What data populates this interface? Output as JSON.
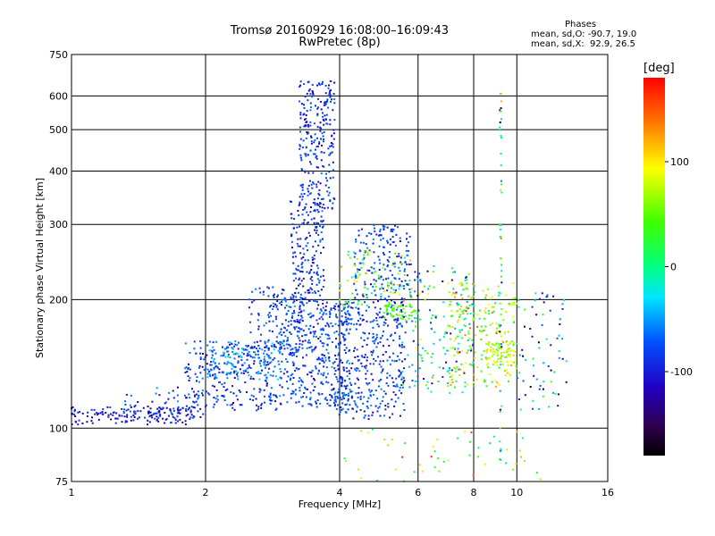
{
  "header": {
    "title_line1": "Tromsø 20160929 16:08:00–16:09:43",
    "title_line2": "RwPretec (8p)"
  },
  "stats": {
    "heading": "Phases",
    "line_o": "mean, sd,O: -90.7, 19.0",
    "line_x": "mean, sd,X:  92.9, 26.5"
  },
  "colorbar": {
    "label": "[deg]",
    "ticks": [
      {
        "value": 100,
        "label": "100"
      },
      {
        "value": 0,
        "label": "0"
      },
      {
        "value": -100,
        "label": "-100"
      }
    ],
    "range": [
      -180,
      180
    ]
  },
  "chart_data": {
    "type": "scatter",
    "xlabel": "Frequency [MHz]",
    "ylabel": "Stationary phase Virtual Height [km]",
    "xscale": "log",
    "yscale": "log",
    "xlim": [
      1,
      16
    ],
    "ylim": [
      75,
      750
    ],
    "xticks": [
      {
        "value": 1,
        "label": "1"
      },
      {
        "value": 2,
        "label": "2"
      },
      {
        "value": 4,
        "label": "4"
      },
      {
        "value": 6,
        "label": "6"
      },
      {
        "value": 8,
        "label": "8"
      },
      {
        "value": 10,
        "label": "10"
      },
      {
        "value": 16,
        "label": "16"
      }
    ],
    "yticks": [
      {
        "value": 75,
        "label": "75"
      },
      {
        "value": 100,
        "label": "100"
      },
      {
        "value": 200,
        "label": "200"
      },
      {
        "value": 300,
        "label": "300"
      },
      {
        "value": 400,
        "label": "400"
      },
      {
        "value": 500,
        "label": "500"
      },
      {
        "value": 600,
        "label": "600"
      },
      {
        "value": 750,
        "label": "750"
      }
    ],
    "grid": true,
    "series": [
      {
        "clusters": [
          {
            "f0": 1.0,
            "f1": 1.9,
            "h0": 102,
            "h1": 112,
            "n": 150,
            "ph": -115,
            "ps": 12
          },
          {
            "f0": 1.3,
            "f1": 2.0,
            "h0": 105,
            "h1": 125,
            "n": 60,
            "ph": -100,
            "ps": 15
          },
          {
            "f0": 1.8,
            "f1": 3.0,
            "h0": 110,
            "h1": 160,
            "n": 280,
            "ph": -105,
            "ps": 15
          },
          {
            "f0": 2.0,
            "f1": 3.0,
            "h0": 130,
            "h1": 160,
            "n": 120,
            "ph": -65,
            "ps": 15
          },
          {
            "f0": 2.5,
            "f1": 3.3,
            "h0": 150,
            "h1": 215,
            "n": 120,
            "ph": -100,
            "ps": 15
          },
          {
            "f0": 3.0,
            "f1": 4.2,
            "h0": 112,
            "h1": 200,
            "n": 380,
            "ph": -100,
            "ps": 14
          },
          {
            "f0": 3.1,
            "f1": 3.7,
            "h0": 200,
            "h1": 340,
            "n": 170,
            "ph": -105,
            "ps": 13
          },
          {
            "f0": 3.25,
            "f1": 3.9,
            "h0": 320,
            "h1": 650,
            "n": 260,
            "ph": -105,
            "ps": 12
          },
          {
            "f0": 3.9,
            "f1": 5.6,
            "h0": 105,
            "h1": 200,
            "n": 380,
            "ph": -100,
            "ps": 14
          },
          {
            "f0": 4.3,
            "f1": 5.8,
            "h0": 200,
            "h1": 300,
            "n": 170,
            "ph": -100,
            "ps": 15
          },
          {
            "f0": 4.0,
            "f1": 5.8,
            "h0": 190,
            "h1": 260,
            "n": 90,
            "ph": 50,
            "ps": 45
          },
          {
            "f0": 5.0,
            "f1": 6.0,
            "h0": 180,
            "h1": 195,
            "n": 50,
            "ph": 45,
            "ps": 15
          },
          {
            "f0": 5.5,
            "f1": 8.0,
            "h0": 120,
            "h1": 240,
            "n": 170,
            "ph": -40,
            "ps": 70
          },
          {
            "f0": 7.0,
            "f1": 10.0,
            "h0": 125,
            "h1": 220,
            "n": 220,
            "ph": 70,
            "ps": 40
          },
          {
            "f0": 8.5,
            "f1": 10.0,
            "h0": 140,
            "h1": 160,
            "n": 60,
            "ph": 85,
            "ps": 15
          },
          {
            "f0": 10.0,
            "f1": 13.0,
            "h0": 110,
            "h1": 210,
            "n": 70,
            "ph": -80,
            "ps": 60
          },
          {
            "f0": 9.15,
            "f1": 9.25,
            "h0": 78,
            "h1": 620,
            "n": 50,
            "ph": 0,
            "ps": 80
          },
          {
            "f0": 4.0,
            "f1": 12.0,
            "h0": 75,
            "h1": 100,
            "n": 50,
            "ph": 60,
            "ps": 50
          }
        ]
      }
    ]
  }
}
